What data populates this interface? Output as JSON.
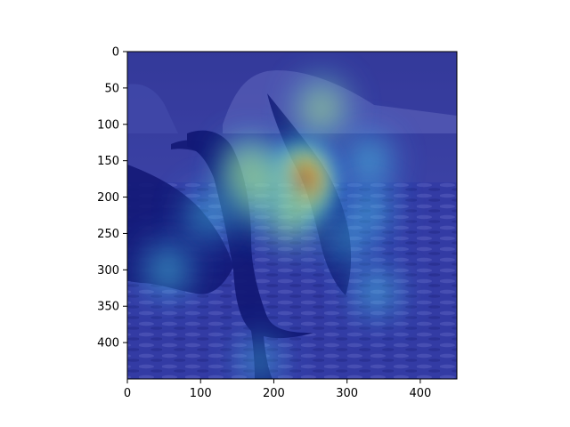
{
  "chart_data": {
    "type": "heatmap",
    "title": "",
    "xlabel": "",
    "ylabel": "",
    "xlim": [
      0,
      450
    ],
    "ylim": [
      450,
      0
    ],
    "x_ticks": [
      0,
      100,
      200,
      300,
      400
    ],
    "y_ticks": [
      0,
      50,
      100,
      150,
      200,
      250,
      300,
      350,
      400
    ],
    "grid": false,
    "legend": "none",
    "colormap": "jet",
    "background_image": "cormorant-bird-spreading-wings-over-water",
    "hotspots": [
      {
        "x": 240,
        "y": 178,
        "intensity": 1.0
      },
      {
        "x": 178,
        "y": 185,
        "intensity": 0.8
      },
      {
        "x": 265,
        "y": 78,
        "intensity": 0.55
      },
      {
        "x": 330,
        "y": 150,
        "intensity": 0.5
      },
      {
        "x": 225,
        "y": 225,
        "intensity": 0.6
      },
      {
        "x": 330,
        "y": 220,
        "intensity": 0.45
      },
      {
        "x": 110,
        "y": 225,
        "intensity": 0.45
      },
      {
        "x": 55,
        "y": 300,
        "intensity": 0.5
      },
      {
        "x": 340,
        "y": 330,
        "intensity": 0.45
      },
      {
        "x": 180,
        "y": 425,
        "intensity": 0.35
      },
      {
        "x": 165,
        "y": 160,
        "intensity": 0.55
      },
      {
        "x": 300,
        "y": 260,
        "intensity": 0.35
      }
    ]
  }
}
